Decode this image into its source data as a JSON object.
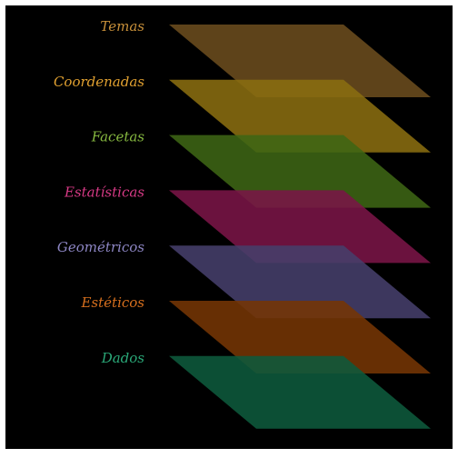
{
  "diagram": {
    "background": "#000000",
    "frame_color": "#ffffff",
    "layers": [
      {
        "label": "Temas",
        "color": "#6b4c1e",
        "label_color": "#c8903a"
      },
      {
        "label": "Coordenadas",
        "color": "#8a6d10",
        "label_color": "#e0a030"
      },
      {
        "label": "Facetas",
        "color": "#3e6514",
        "label_color": "#86b840"
      },
      {
        "label": "Estatísticas",
        "color": "#7a1547",
        "label_color": "#d83a86"
      },
      {
        "label": "Geométricos",
        "color": "#453f6b",
        "label_color": "#8d86c4"
      },
      {
        "label": "Estéticos",
        "color": "#753505",
        "label_color": "#d8701e"
      },
      {
        "label": "Dados",
        "color": "#0e5a3c",
        "label_color": "#2aa878"
      }
    ]
  }
}
